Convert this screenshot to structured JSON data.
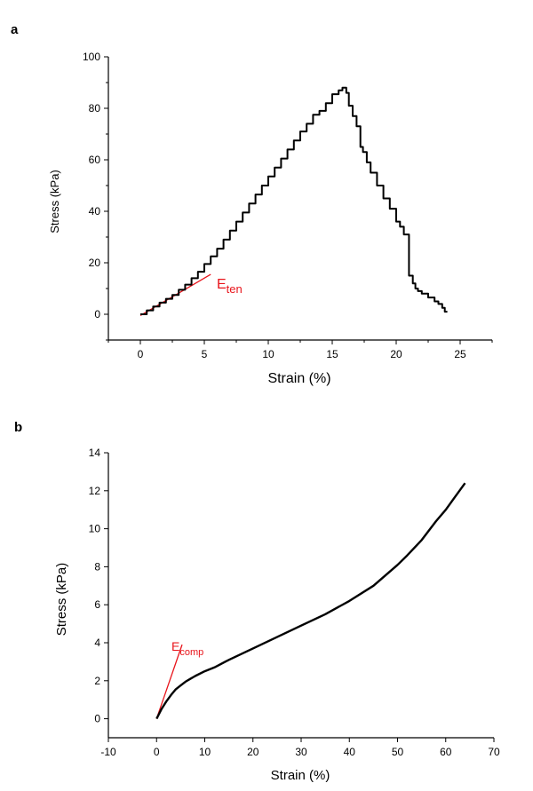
{
  "colors": {
    "series": "#000000",
    "annotation": "#e8141b",
    "axis": "#000000"
  },
  "chart_data": [
    {
      "type": "line",
      "panel_label": "a",
      "xlabel": "Strain (%)",
      "ylabel": "Stress (kPa)",
      "xlim": [
        -2.5,
        27.5
      ],
      "ylim": [
        -10,
        100
      ],
      "xticks": [
        0,
        5,
        10,
        15,
        20,
        25
      ],
      "yticks": [
        0,
        20,
        40,
        60,
        80,
        100
      ],
      "grid": false,
      "annotation": {
        "base": "E",
        "sub": "ten",
        "line": {
          "x": [
            0,
            5.5
          ],
          "y": [
            -0.5,
            15.5
          ]
        }
      },
      "series": [
        {
          "step": true,
          "x": [
            0,
            0.5,
            1,
            1.5,
            2,
            2.5,
            3,
            3.5,
            4,
            4.5,
            5,
            5.5,
            6,
            6.5,
            7,
            7.5,
            8,
            8.5,
            9,
            9.5,
            10,
            10.5,
            11,
            11.5,
            12,
            12.5,
            13,
            13.5,
            14,
            14.5,
            15,
            15.5,
            15.8,
            16.1,
            16.3,
            16.6,
            16.9,
            17.2,
            17.4,
            17.7,
            18,
            18.5,
            19,
            19.5,
            20,
            20.3,
            20.6,
            21,
            21.3,
            21.5,
            21.7,
            22,
            22.5,
            23,
            23.3,
            23.6,
            23.8,
            24
          ],
          "y": [
            0,
            1.5,
            3,
            4.5,
            6,
            7.5,
            9.5,
            11.5,
            14,
            16.5,
            19.5,
            22.5,
            25.5,
            29,
            32.5,
            36,
            39.5,
            43,
            46.5,
            50,
            53.5,
            57,
            60.5,
            64,
            67.5,
            71,
            74,
            77.5,
            79,
            82,
            85.5,
            87,
            88,
            86,
            81,
            77,
            73,
            65,
            63,
            59,
            55,
            50,
            45,
            41,
            36,
            34,
            31,
            15,
            12,
            10,
            9,
            8,
            6.5,
            5,
            4,
            2.5,
            1,
            1
          ]
        }
      ]
    },
    {
      "type": "line",
      "panel_label": "b",
      "xlabel": "Strain (%)",
      "ylabel": "Stress (kPa)",
      "xlim": [
        -10,
        70
      ],
      "ylim": [
        -1,
        14
      ],
      "xticks": [
        -10,
        0,
        10,
        20,
        30,
        40,
        50,
        60,
        70
      ],
      "yticks": [
        0,
        2,
        4,
        6,
        8,
        10,
        12,
        14
      ],
      "grid": false,
      "annotation": {
        "base": "E",
        "sub": "comp",
        "line": {
          "x": [
            0,
            5.3
          ],
          "y": [
            0,
            3.9
          ]
        }
      },
      "series": [
        {
          "step": false,
          "x": [
            0,
            1,
            2,
            3,
            4,
            5,
            6,
            7,
            8,
            10,
            12,
            15,
            20,
            25,
            30,
            35,
            40,
            45,
            50,
            52,
            55,
            58,
            60,
            62,
            64
          ],
          "y": [
            0,
            0.5,
            0.9,
            1.25,
            1.55,
            1.75,
            1.95,
            2.1,
            2.25,
            2.5,
            2.7,
            3.1,
            3.7,
            4.3,
            4.9,
            5.5,
            6.2,
            7.0,
            8.1,
            8.6,
            9.4,
            10.4,
            11.0,
            11.7,
            12.4
          ]
        }
      ]
    }
  ]
}
